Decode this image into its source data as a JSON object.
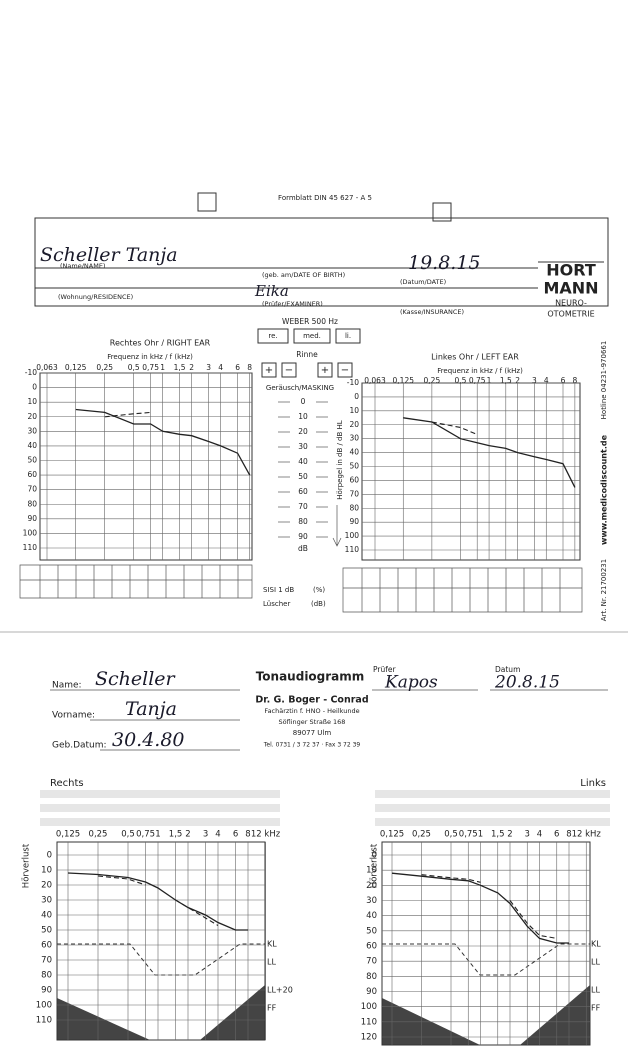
{
  "top_form": {
    "form_number": "Formblatt DIN 45 627 - A 5",
    "name": "Scheller Tanja",
    "name_label": "(Name/NAME)",
    "birth_label": "(geb. am/DATE OF BIRTH)",
    "date": "19.8.15",
    "date_label": "(Datum/DATE)",
    "residence_label": "(Wohnung/RESIDENCE)",
    "examiner": "Eika",
    "examiner_label": "(Prüfer/EXAMINER)",
    "insurance_label": "(Kasse/INSURANCE)",
    "logo": [
      "HORT",
      "MANN",
      "NEURO-",
      "OTOMETRIE"
    ],
    "weber": {
      "title": "WEBER 500 Hz",
      "options": [
        "re.",
        "med.",
        "li."
      ]
    },
    "rinne": {
      "title": "Rinne",
      "signs": [
        "+",
        "−",
        "+",
        "−"
      ]
    },
    "masking": {
      "title": "Geräusch/MASKING",
      "scale": [
        0,
        10,
        20,
        30,
        40,
        50,
        60,
        70,
        80,
        90
      ],
      "unit": "dB"
    },
    "level_axis_label": "Hörpegel in dB / dB HL",
    "sisi": {
      "label": "SISI 1 dB",
      "unit": "(%)"
    },
    "luescher": {
      "label": "Lüscher",
      "unit": "(dB)"
    },
    "side_texts": [
      "Hotline 04231-970661",
      "www.medicodiscount.de",
      "Art. Nr. 21700231"
    ],
    "audiograms": [
      {
        "title": "Rechtes Ohr / RIGHT EAR",
        "freq_title": "Frequenz in kHz / f (kHz)",
        "frequencies": [
          "0,063",
          "0,125",
          "0,25",
          "0,5",
          "0,75",
          "1",
          "1,5",
          "2",
          "3",
          "4",
          "6",
          "8"
        ],
        "levels": [
          -10,
          0,
          10,
          20,
          30,
          40,
          50,
          60,
          70,
          80,
          90,
          100,
          110
        ],
        "air": [
          null,
          15,
          17,
          25,
          25,
          30,
          32,
          33,
          37,
          40,
          45,
          60
        ],
        "bone": [
          null,
          null,
          20,
          18,
          17,
          null,
          null,
          null,
          null,
          null,
          null,
          null
        ]
      },
      {
        "title": "Linkes Ohr / LEFT EAR",
        "freq_title": "Frequenz in kHz / f (kHz)",
        "frequencies": [
          "0,063",
          "0,125",
          "0,25",
          "0,5",
          "0,75",
          "1",
          "1,5",
          "2",
          "3",
          "4",
          "6",
          "8"
        ],
        "levels": [
          -10,
          0,
          10,
          20,
          30,
          40,
          50,
          60,
          70,
          80,
          90,
          100,
          110
        ],
        "air": [
          null,
          15,
          18,
          30,
          33,
          35,
          37,
          40,
          43,
          45,
          48,
          65
        ],
        "bone": [
          null,
          null,
          18,
          22,
          27,
          null,
          null,
          null,
          null,
          null,
          null,
          null
        ]
      }
    ]
  },
  "bottom_form": {
    "name_label": "Name:",
    "name": "Scheller",
    "first_name_label": "Vorname:",
    "first_name": "Tanja",
    "birth_label": "Geb.Datum:",
    "birth": "30.4.80",
    "title": "Tonaudiogramm",
    "examiner_label": "Prüfer",
    "examiner": "Kapos",
    "date_label": "Datum",
    "date": "20.8.15",
    "practice": [
      "Dr. G. Boger - Conrad",
      "Fachärztin f. HNO - Heilkunde",
      "Söflinger Straße 168",
      "89077 Ulm",
      "Tel. 0731 / 3 72 37 · Fax 3 72 39"
    ],
    "audiograms": [
      {
        "side": "Rechts",
        "axis_label": "Hörverlust",
        "frequencies": [
          "0,125",
          "0,25",
          "0,5",
          "0,75",
          "1",
          "1,5",
          "2",
          "3",
          "4",
          "6",
          "8",
          "12 kHz"
        ],
        "levels": [
          0,
          10,
          20,
          30,
          40,
          50,
          60,
          70,
          80,
          90,
          100,
          110
        ],
        "line_labels": [
          "KL",
          "LL",
          "LL+20",
          "FF"
        ],
        "air": [
          12,
          13,
          15,
          18,
          22,
          30,
          35,
          40,
          45,
          50,
          50,
          null
        ],
        "bone": [
          null,
          14,
          16,
          20,
          null,
          30,
          35,
          42,
          47,
          null,
          null,
          null
        ]
      },
      {
        "side": "Links",
        "axis_label": "Hörverlust",
        "frequencies": [
          "0,125",
          "0,25",
          "0,5",
          "0,75",
          "1",
          "1,5",
          "2",
          "3",
          "4",
          "6",
          "8",
          "12 kHz"
        ],
        "levels": [
          0,
          10,
          20,
          30,
          40,
          50,
          60,
          70,
          80,
          90,
          100,
          110,
          120
        ],
        "line_labels": [
          "KL",
          "LL",
          "LL",
          "FF"
        ],
        "air": [
          12,
          14,
          16,
          17,
          20,
          25,
          32,
          47,
          55,
          58,
          58,
          null
        ],
        "bone": [
          null,
          13,
          15,
          16,
          18,
          null,
          30,
          45,
          53,
          55,
          null,
          null
        ]
      }
    ]
  }
}
